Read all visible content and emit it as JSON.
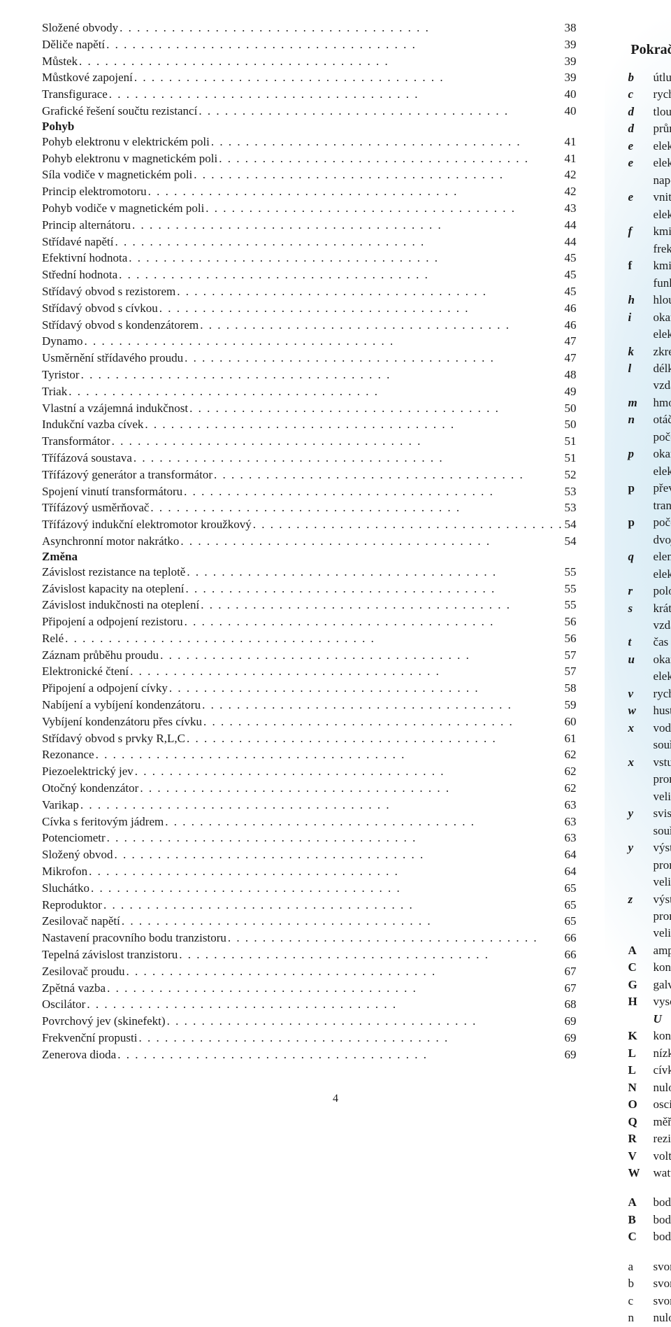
{
  "toc": [
    {
      "label": "Složené obvody",
      "page": "38"
    },
    {
      "label": "Děliče napětí",
      "page": "39"
    },
    {
      "label": "Můstek",
      "page": "39"
    },
    {
      "label": "Můstkové zapojení",
      "page": "39"
    },
    {
      "label": "Transfigurace",
      "page": "40"
    },
    {
      "label": "Grafické řešení součtu rezistancí",
      "page": "40"
    },
    {
      "heading": "Pohyb"
    },
    {
      "label": "Pohyb elektronu v elektrickém poli",
      "page": "41"
    },
    {
      "label": "Pohyb elektronu v magnetickém poli",
      "page": "41"
    },
    {
      "label": "Síla vodiče v magnetickém poli",
      "page": "42"
    },
    {
      "label": "Princip elektromotoru",
      "page": "42"
    },
    {
      "label": "Pohyb vodiče v magnetickém poli",
      "page": "43"
    },
    {
      "label": "Princip alternátoru",
      "page": "44"
    },
    {
      "label": "Střídavé napětí",
      "page": "44"
    },
    {
      "label": "Efektivní hodnota",
      "page": "45"
    },
    {
      "label": "Střední hodnota",
      "page": "45"
    },
    {
      "label": "Střídavý obvod s rezistorem",
      "page": "45"
    },
    {
      "label": "Střídavý obvod s cívkou",
      "page": "46"
    },
    {
      "label": "Střídavý obvod s kondenzátorem",
      "page": "46"
    },
    {
      "label": "Dynamo",
      "page": "47"
    },
    {
      "label": "Usměrnění střídavého proudu",
      "page": "47"
    },
    {
      "label": "Tyristor",
      "page": "48"
    },
    {
      "label": "Triak",
      "page": "49"
    },
    {
      "label": "Vlastní a vzájemná indukčnost",
      "page": "50"
    },
    {
      "label": "Indukční vazba cívek",
      "page": "50"
    },
    {
      "label": "Transformátor",
      "page": "51"
    },
    {
      "label": "Třífázová soustava",
      "page": "51"
    },
    {
      "label": "Třífázový generátor a transformátor",
      "page": "52"
    },
    {
      "label": "Spojení vinutí transformátoru",
      "page": "53"
    },
    {
      "label": "Třífázový usměrňovač",
      "page": "53"
    },
    {
      "label": "Třífázový indukční elektromotor kroužkový",
      "page": "54"
    },
    {
      "label": "Asynchronní motor nakrátko",
      "page": "54"
    },
    {
      "heading": "Změna"
    },
    {
      "label": "Závislost rezistance na teplotě",
      "page": "55"
    },
    {
      "label": "Závislost kapacity na oteplení",
      "page": "55"
    },
    {
      "label": "Závislost indukčnosti na oteplení",
      "page": "55"
    },
    {
      "label": "Připojení a odpojení rezistoru",
      "page": "56"
    },
    {
      "label": "Relé",
      "page": "56"
    },
    {
      "label": "Záznam průběhu proudu",
      "page": "57"
    },
    {
      "label": "Elektronické čtení",
      "page": "57"
    },
    {
      "label": "Připojení a odpojení cívky",
      "page": "58"
    },
    {
      "label": "Nabíjení a vybíjení kondenzátoru",
      "page": "59"
    },
    {
      "label": "Vybíjení kondenzátoru přes cívku",
      "page": "60"
    },
    {
      "label": "Střídavý obvod s prvky R,L,C",
      "page": "61"
    },
    {
      "label": "Rezonance",
      "page": "62"
    },
    {
      "label": "Piezoelektrický jev",
      "page": "62"
    },
    {
      "label": "Otočný kondenzátor",
      "page": "62"
    },
    {
      "label": "Varikap",
      "page": "63"
    },
    {
      "label": "Cívka s feritovým jádrem",
      "page": "63"
    },
    {
      "label": "Potenciometr",
      "page": "63"
    },
    {
      "label": "Složený obvod",
      "page": "64"
    },
    {
      "label": "Mikrofon",
      "page": "64"
    },
    {
      "label": "Sluchátko",
      "page": "65"
    },
    {
      "label": "Reproduktor",
      "page": "65"
    },
    {
      "label": "Zesilovač napětí",
      "page": "65"
    },
    {
      "label": "Nastavení pracovního bodu tranzistoru",
      "page": "66"
    },
    {
      "label": "Tepelná závislost tranzistoru",
      "page": "66"
    },
    {
      "label": "Zesilovač proudu",
      "page": "67"
    },
    {
      "label": "Zpětná vazba",
      "page": "67"
    },
    {
      "label": "Oscilátor",
      "page": "68"
    },
    {
      "label": "Povrchový jev (skinefekt)",
      "page": "69"
    },
    {
      "label": "Frekvenční propusti",
      "page": "69"
    },
    {
      "label": "Zenerova dioda",
      "page": "69"
    }
  ],
  "right_title": "Pokračování:",
  "symbols": [
    {
      "k": "b",
      "v": "útlum",
      "cls": ""
    },
    {
      "k": "c",
      "v": "rychlost světla",
      "cls": ""
    },
    {
      "k": "d",
      "v": "tloušťka",
      "cls": ""
    },
    {
      "k": "d",
      "v": "průměr",
      "cls": ""
    },
    {
      "k": "e",
      "v": "elektron",
      "cls": ""
    },
    {
      "k": "e",
      "v": "elektromotorické napětí",
      "cls": ""
    },
    {
      "k": "e",
      "v": "vnitřní elektrické napětí",
      "cls": ""
    },
    {
      "k": "f",
      "v": "kmitočet – frekvence",
      "cls": ""
    },
    {
      "k": "f",
      "v": "kmitoměr, funkce",
      "cls": "roman"
    },
    {
      "k": "h",
      "v": "hloubka vniku",
      "cls": ""
    },
    {
      "k": "i",
      "v": "okamžitý elektrický proud",
      "cls": ""
    },
    {
      "k": "k",
      "v": "zkreslení",
      "cls": ""
    },
    {
      "k": "l",
      "v": "délka – vzdálenost",
      "cls": ""
    },
    {
      "k": "m",
      "v": "hmotnost",
      "cls": ""
    },
    {
      "k": "n",
      "v": "otáčení – otáčky, počet",
      "cls": ""
    },
    {
      "k": "p",
      "v": "okamžitý elektrický výkon",
      "cls": ""
    },
    {
      "k": "p",
      "v": "převod transformátoru",
      "cls": "roman"
    },
    {
      "k": "p",
      "v": "počet pólových dvojic",
      "cls": "roman"
    },
    {
      "k": "q",
      "v": "elementární elektrický náboj",
      "cls": ""
    },
    {
      "k": "r",
      "v": "poloměr",
      "cls": ""
    },
    {
      "k": "s",
      "v": "krátká vzdálenost",
      "cls": ""
    },
    {
      "k": "t",
      "v": "čas – doba",
      "cls": ""
    },
    {
      "k": "u",
      "v": "okamžité elektrické napětí",
      "cls": ""
    },
    {
      "k": "v",
      "v": "rychlost",
      "cls": ""
    },
    {
      "k": "w",
      "v": "hustota energie",
      "cls": ""
    },
    {
      "k": "x",
      "v": "vodorovná souřadnice",
      "cls": ""
    },
    {
      "k": "x",
      "v": "vstupní proměnná veličina",
      "cls": ""
    },
    {
      "k": "y",
      "v": "svislá souřadnice",
      "cls": ""
    },
    {
      "k": "y",
      "v": "výstupní proměnná veličina",
      "cls": ""
    },
    {
      "k": "z",
      "v": "výstupní proměnná veličina",
      "cls": ""
    },
    {
      "k": "A",
      "v": "ampérmetr",
      "cls": "roman"
    },
    {
      "k": "C",
      "v": "kondenzátor",
      "cls": "roman"
    },
    {
      "k": "G",
      "v": "galvanometr",
      "cls": "roman"
    },
    {
      "k": "H",
      "v": "vysoká úroveň <span class='bolditalic'>U</span>",
      "cls": "roman",
      "html": true
    },
    {
      "k": "K",
      "v": "konstanta",
      "cls": "roman"
    },
    {
      "k": "L",
      "v": "nízká úroveň <span class='bolditalic'>U</span>",
      "cls": "roman",
      "html": true
    },
    {
      "k": "L",
      "v": "cívka, fáze",
      "cls": "roman"
    },
    {
      "k": "N",
      "v": "nulový vodič",
      "cls": "roman"
    },
    {
      "k": "O",
      "v": "osciloskop",
      "cls": "roman"
    },
    {
      "k": "Q",
      "v": "měřič činitele <span class='bolditalic'>Q</span>",
      "cls": "roman",
      "html": true
    },
    {
      "k": "R",
      "v": "rezistor",
      "cls": "roman"
    },
    {
      "k": "V",
      "v": "voltmetr",
      "cls": "roman"
    },
    {
      "k": "W",
      "v": "wattmetr",
      "cls": "roman"
    }
  ],
  "symbols2": [
    {
      "k": "A",
      "v": "bod, svorka",
      "cls": "roman"
    },
    {
      "k": "B",
      "v": "bod, svorka",
      "cls": "roman"
    },
    {
      "k": "C",
      "v": "bod, svorka",
      "cls": "roman"
    }
  ],
  "symbols3": [
    {
      "k": "a",
      "v": "svorka nižšího <span class='bolditalic'>U</span>",
      "cls": "lower",
      "html": true
    },
    {
      "k": "b",
      "v": "svorka nižšího <span class='bolditalic'>U</span>",
      "cls": "lower",
      "html": true
    },
    {
      "k": "c",
      "v": "svorka nižšího <span class='bolditalic'>U</span>",
      "cls": "lower",
      "html": true
    },
    {
      "k": "n",
      "v": "nulová svorka",
      "cls": "lower"
    }
  ],
  "page_number": "4"
}
